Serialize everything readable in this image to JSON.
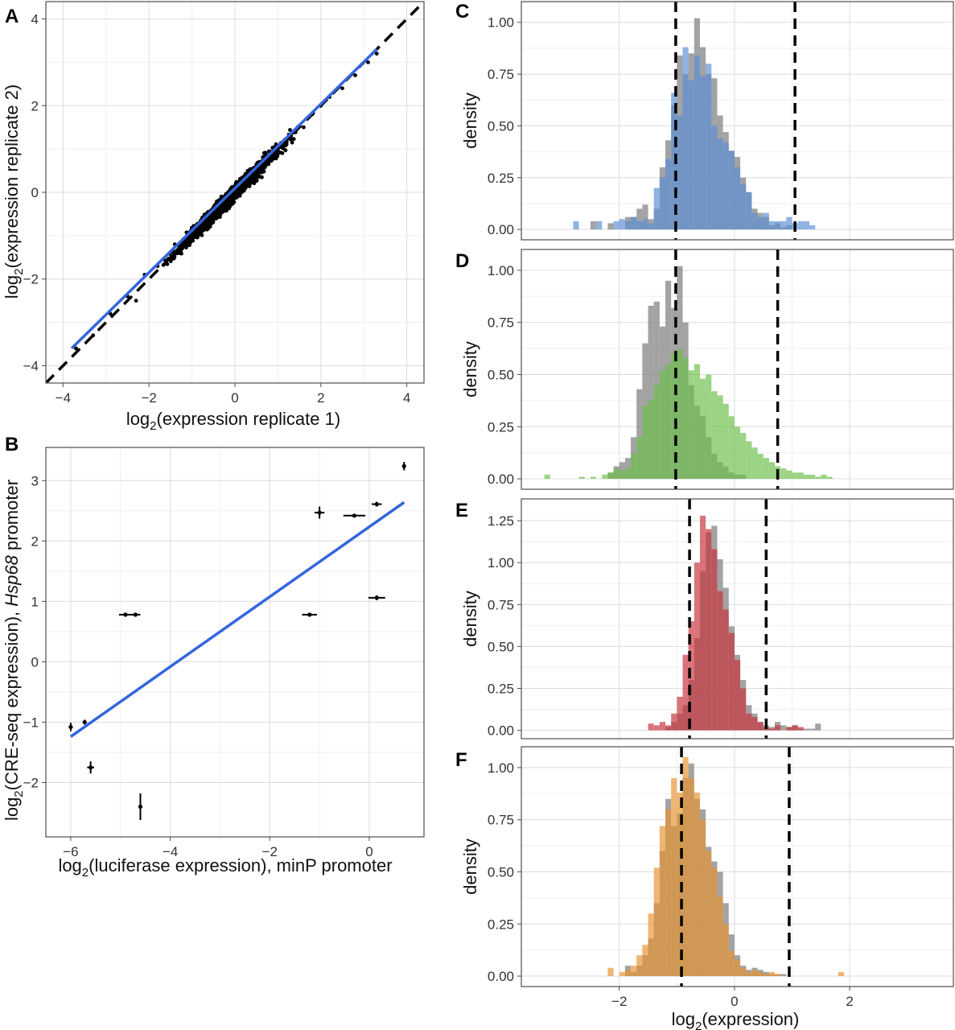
{
  "colors": {
    "regression": "#3366dd",
    "reference": "#000000",
    "grey": "#7f7f7f",
    "blue": "#5b8fd6",
    "green": "#6cbf4a",
    "red": "#c8323c",
    "orange": "#e89430"
  },
  "chart_data": [
    {
      "panel": "A",
      "type": "scatter",
      "xlabel": "log2(expression replicate 1)",
      "ylabel": "log2(expression replicate 2)",
      "xlim": [
        -4.4,
        4.4
      ],
      "ylim": [
        -4.4,
        4.4
      ],
      "xticks": [
        -4,
        -2,
        0,
        2,
        4
      ],
      "yticks": [
        -4,
        -2,
        0,
        2,
        4
      ],
      "fit_line": {
        "x": [
          -3.8,
          3.3
        ],
        "y": [
          -3.6,
          3.3
        ]
      },
      "reference_line": {
        "slope": 1,
        "intercept": 0
      },
      "points_approx": [
        [
          -3.7,
          -3.6
        ],
        [
          -3.3,
          -3.3
        ],
        [
          -2.9,
          -2.8
        ],
        [
          -2.5,
          -2.4
        ],
        [
          -2.3,
          -2.5
        ],
        [
          -2.1,
          -1.9
        ],
        [
          -1.8,
          -1.7
        ],
        [
          -1.6,
          -1.6
        ],
        [
          -1.4,
          -1.2
        ],
        [
          -1.2,
          -1.1
        ],
        [
          -1.0,
          -0.9
        ],
        [
          -0.8,
          -0.7
        ],
        [
          -0.6,
          -0.5
        ],
        [
          -0.4,
          -0.3
        ],
        [
          -0.2,
          -0.2
        ],
        [
          0.0,
          0.1
        ],
        [
          0.2,
          0.2
        ],
        [
          0.4,
          0.4
        ],
        [
          0.6,
          0.5
        ],
        [
          0.8,
          0.8
        ],
        [
          1.0,
          1.0
        ],
        [
          1.2,
          1.1
        ],
        [
          1.4,
          1.4
        ],
        [
          1.6,
          1.5
        ],
        [
          1.8,
          1.8
        ],
        [
          2.0,
          2.0
        ],
        [
          2.2,
          2.2
        ],
        [
          2.5,
          2.4
        ],
        [
          2.8,
          2.7
        ],
        [
          3.1,
          3.0
        ],
        [
          3.3,
          3.2
        ]
      ]
    },
    {
      "panel": "B",
      "type": "scatter",
      "xlabel_parts": [
        "log",
        "2",
        "(luciferase expression), minP promoter"
      ],
      "ylabel_parts": [
        "log",
        "2",
        "(CRE-seq expression), ",
        "Hsp68",
        " promoter"
      ],
      "xlim": [
        -6.5,
        1.1
      ],
      "ylim": [
        -2.9,
        3.55
      ],
      "xticks": [
        -6,
        -4,
        -2,
        0
      ],
      "yticks": [
        -2,
        -1,
        0,
        1,
        2,
        3
      ],
      "points": [
        {
          "x": -6.0,
          "y": -1.08,
          "xerr": 0.04,
          "yerr": 0.07
        },
        {
          "x": -5.72,
          "y": -1.0,
          "xerr": 0.04,
          "yerr": 0.04
        },
        {
          "x": -5.6,
          "y": -1.75,
          "xerr": 0.07,
          "yerr": 0.1
        },
        {
          "x": -4.9,
          "y": 0.78,
          "xerr": 0.13,
          "yerr": 0.03
        },
        {
          "x": -4.7,
          "y": 0.78,
          "xerr": 0.1,
          "yerr": 0.03
        },
        {
          "x": -4.6,
          "y": -2.4,
          "xerr": 0.02,
          "yerr": 0.22
        },
        {
          "x": -1.2,
          "y": 0.78,
          "xerr": 0.15,
          "yerr": 0.03
        },
        {
          "x": -1.0,
          "y": 2.47,
          "xerr": 0.1,
          "yerr": 0.1
        },
        {
          "x": -0.3,
          "y": 2.42,
          "xerr": 0.22,
          "yerr": 0.03
        },
        {
          "x": 0.15,
          "y": 1.06,
          "xerr": 0.17,
          "yerr": 0.04
        },
        {
          "x": 0.15,
          "y": 2.61,
          "xerr": 0.1,
          "yerr": 0.04
        },
        {
          "x": 0.7,
          "y": 3.24,
          "xerr": 0.03,
          "yerr": 0.07
        }
      ],
      "fit_line": {
        "x": [
          -6.0,
          0.7
        ],
        "y": [
          -1.24,
          2.64
        ]
      }
    },
    {
      "panel": "C",
      "type": "histogram",
      "ylabel": "density",
      "xlim": [
        -3.7,
        3.8
      ],
      "ylim": [
        -0.05,
        1.1
      ],
      "yticks": [
        0.0,
        0.25,
        0.5,
        0.75,
        1.0
      ],
      "ytick_labels": [
        "0.00",
        "0.25",
        "0.50",
        "0.75",
        "1.00"
      ],
      "bin_start": -2.8,
      "bin_width": 0.1,
      "vlines": [
        -1.02,
        1.05
      ],
      "grey": [
        0,
        0,
        0,
        0.04,
        0,
        0,
        0.03,
        0,
        0,
        0.06,
        0.06,
        0.1,
        0.12,
        0.05,
        0.1,
        0.3,
        0.43,
        0.6,
        0.84,
        0.75,
        0.85,
        1.02,
        0.88,
        0.75,
        0.73,
        0.55,
        0.47,
        0.38,
        0.35,
        0.25,
        0.18,
        0.1,
        0.08,
        0.06,
        0.02,
        0.03,
        0.01,
        0.02,
        0,
        0,
        0,
        0
      ],
      "color": [
        0.04,
        0,
        0,
        0,
        0.04,
        0,
        0,
        0.04,
        0.05,
        0.04,
        0.06,
        0.04,
        0.05,
        0.03,
        0.2,
        0.25,
        0.34,
        0.66,
        0.55,
        0.88,
        0.72,
        0.84,
        0.74,
        0.8,
        0.5,
        0.44,
        0.42,
        0.38,
        0.3,
        0.22,
        0.18,
        0.08,
        0.06,
        0.08,
        0.04,
        0.04,
        0.04,
        0.06,
        0.03,
        0.04,
        0.04,
        0.02
      ]
    },
    {
      "panel": "D",
      "type": "histogram",
      "ylabel": "density",
      "xlim": [
        -3.7,
        3.8
      ],
      "ylim": [
        -0.05,
        1.1
      ],
      "yticks": [
        0.0,
        0.25,
        0.5,
        0.75,
        1.0
      ],
      "ytick_labels": [
        "0.00",
        "0.25",
        "0.50",
        "0.75",
        "1.00"
      ],
      "bin_start": -3.3,
      "bin_width": 0.1,
      "vlines": [
        -1.02,
        0.75
      ],
      "grey": [
        0,
        0,
        0,
        0,
        0,
        0,
        0,
        0,
        0,
        0,
        0,
        0.03,
        0.06,
        0.08,
        0.1,
        0.2,
        0.43,
        0.65,
        0.83,
        0.85,
        0.73,
        0.95,
        0.82,
        1.02,
        0.75,
        0.45,
        0.35,
        0.3,
        0.2,
        0.12,
        0.08,
        0.06,
        0.03,
        0.02,
        0.02,
        0,
        0,
        0,
        0,
        0,
        0,
        0,
        0,
        0,
        0,
        0,
        0,
        0,
        0,
        0
      ],
      "color": [
        0.02,
        0,
        0,
        0,
        0,
        0,
        0.01,
        0,
        0.01,
        0,
        0.02,
        0.03,
        0.05,
        0.04,
        0.05,
        0.12,
        0.2,
        0.35,
        0.38,
        0.45,
        0.52,
        0.55,
        0.6,
        0.62,
        0.58,
        0.52,
        0.55,
        0.48,
        0.5,
        0.42,
        0.4,
        0.36,
        0.3,
        0.25,
        0.22,
        0.18,
        0.15,
        0.12,
        0.1,
        0.08,
        0.06,
        0.05,
        0.04,
        0.03,
        0.03,
        0.02,
        0.02,
        0.01,
        0.02,
        0.01
      ]
    },
    {
      "panel": "E",
      "type": "histogram",
      "ylabel": "density",
      "xlim": [
        -3.7,
        3.8
      ],
      "ylim": [
        -0.05,
        1.38
      ],
      "yticks": [
        0.0,
        0.25,
        0.5,
        0.75,
        1.0,
        1.25
      ],
      "ytick_labels": [
        "0.00",
        "0.25",
        "0.50",
        "0.75",
        "1.00",
        "1.25"
      ],
      "bin_start": -1.5,
      "bin_width": 0.1,
      "vlines": [
        -0.78,
        0.55
      ],
      "grey": [
        0,
        0,
        0,
        0.02,
        0.05,
        0.1,
        0.15,
        0.3,
        0.55,
        0.95,
        1.18,
        1.22,
        1.02,
        0.85,
        0.62,
        0.45,
        0.3,
        0.15,
        0.1,
        0.05,
        0.03,
        0.02,
        0.05,
        0.03,
        0.02,
        0.03,
        0.01,
        0.01,
        0.01,
        0.04
      ],
      "color": [
        0.04,
        0.03,
        0.05,
        0.03,
        0.1,
        0.2,
        0.45,
        0.65,
        1.0,
        1.28,
        1.2,
        1.08,
        0.83,
        0.72,
        0.58,
        0.42,
        0.25,
        0.1,
        0.08,
        0.05,
        0.02,
        0.01,
        0.03,
        0,
        0.02,
        0.03,
        0.02,
        0,
        0,
        0
      ]
    },
    {
      "panel": "F",
      "type": "histogram",
      "ylabel": "density",
      "xlabel": "log2(expression)",
      "xlim": [
        -3.7,
        3.8
      ],
      "ylim": [
        -0.05,
        1.1
      ],
      "xticks": [
        -2,
        0,
        2
      ],
      "yticks": [
        0.0,
        0.25,
        0.5,
        0.75,
        1.0
      ],
      "ytick_labels": [
        "0.00",
        "0.25",
        "0.50",
        "0.75",
        "1.00"
      ],
      "bin_start": -2.2,
      "bin_width": 0.1,
      "vlines": [
        -0.92,
        0.95
      ],
      "grey": [
        0,
        0,
        0,
        0.05,
        0.02,
        0.05,
        0.1,
        0.18,
        0.35,
        0.6,
        0.85,
        0.72,
        0.78,
        0.95,
        1.02,
        0.85,
        0.8,
        0.62,
        0.55,
        0.5,
        0.35,
        0.2,
        0.1,
        0.05,
        0.03,
        0.04,
        0.03,
        0.02,
        0.01,
        0.01,
        0.01,
        0,
        0,
        0,
        0,
        0,
        0,
        0,
        0,
        0,
        0
      ],
      "color": [
        0.04,
        0,
        0.02,
        0.03,
        0.05,
        0.1,
        0.15,
        0.3,
        0.52,
        0.72,
        0.8,
        0.95,
        0.88,
        1.05,
        0.95,
        0.88,
        0.75,
        0.6,
        0.52,
        0.38,
        0.25,
        0.12,
        0.08,
        0.04,
        0.02,
        0.03,
        0.02,
        0.01,
        0.02,
        0.01,
        0,
        0,
        0,
        0,
        0,
        0,
        0,
        0,
        0,
        0,
        0.02
      ]
    }
  ]
}
